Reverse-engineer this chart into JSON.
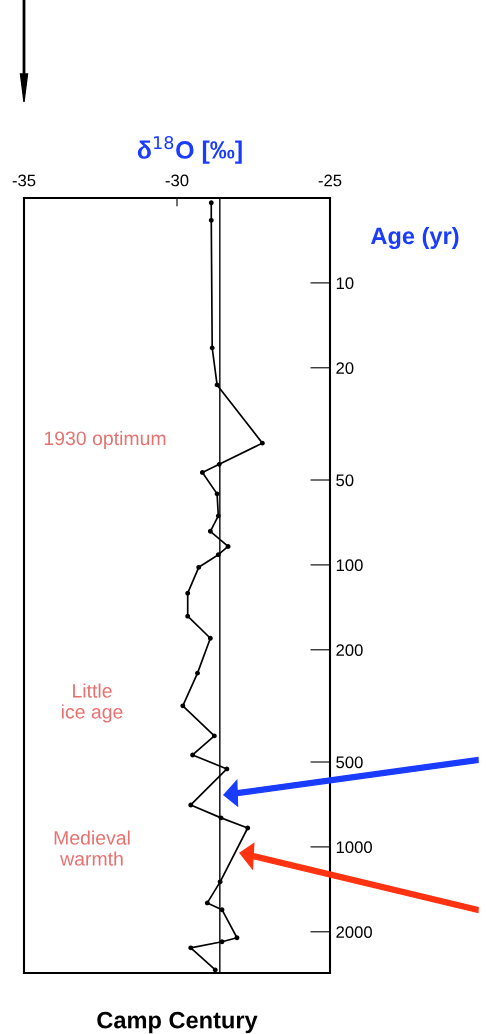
{
  "chart_data": {
    "type": "line",
    "title": "Camp Century",
    "xlabel": "δ$^{18}$O [‰]",
    "ylabel": "Age (yr)",
    "series": [
      {
        "color": "#000000",
        "x": [
          -28.88,
          -28.88,
          -28.85,
          -28.69,
          -27.21,
          -28.62,
          -29.17,
          -28.69,
          -28.65,
          -28.91,
          -28.33,
          -28.65,
          -29.29,
          -29.65,
          -29.65,
          -28.91,
          -29.33,
          -29.81,
          -28.78,
          -29.49,
          -28.37,
          -29.55,
          -28.56,
          -27.69,
          -28.59,
          -29.01,
          -28.53,
          -28.04,
          -28.53,
          -29.55,
          -28.75
        ],
        "values": [
          5.2,
          6,
          17,
          23,
          37,
          44,
          47,
          56,
          67,
          76,
          86,
          92,
          102,
          126,
          152,
          182,
          242,
          316,
          404,
          472,
          529,
          710,
          789,
          857,
          1330,
          1580,
          1670,
          2100,
          2170,
          2280,
          2730
        ]
      }
    ],
    "xlim": [
      -35,
      -25
    ],
    "xticks": [
      -35,
      -30,
      -25
    ],
    "ylim": [
      2800,
      5
    ],
    "log": "y",
    "yticks": [
      10,
      20,
      50,
      100,
      200,
      500,
      1000,
      2000
    ],
    "ref_lines": [
      {
        "axis": "x",
        "value": -28.6,
        "color": "#000000"
      }
    ],
    "annotations": [
      "1930 optimum",
      "Little\nice age",
      "Medieval\nwarmth"
    ],
    "grid": false,
    "legend": false,
    "marker": "circle",
    "line_style": "solid"
  }
}
